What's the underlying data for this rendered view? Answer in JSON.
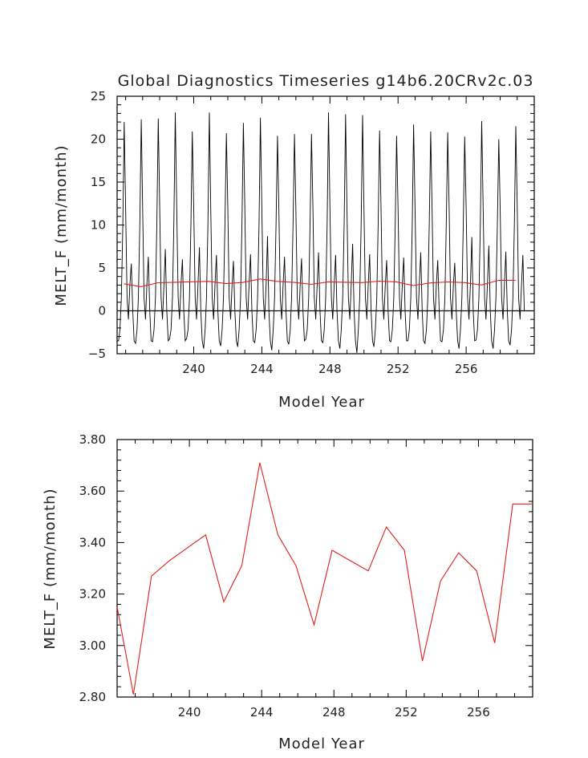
{
  "chart_data": [
    {
      "type": "line",
      "title": "Global Diagnostics Timeseries g14b6.20CRv2c.03",
      "xlabel": "Model Year",
      "ylabel": "MELT_F (mm/month)",
      "xlim": [
        235.5,
        260.0
      ],
      "ylim": [
        -5,
        25
      ],
      "xticks": [
        240,
        244,
        248,
        252,
        256
      ],
      "xtick_labels": [
        "240",
        "244",
        "248",
        "252",
        "256"
      ],
      "yticks": [
        -5,
        0,
        5,
        10,
        15,
        20,
        25
      ],
      "ytick_labels": [
        "−5",
        "0",
        "5",
        "10",
        "15",
        "20",
        "25"
      ],
      "zero_line": true,
      "series": [
        {
          "color": "#000000",
          "start_year": 235.5,
          "step": 0.08333,
          "seasonal_shape": [
            -3.5,
            -3.8,
            -2.2,
            1.5,
            10.0,
            21.5,
            12.0,
            1.5,
            -1.0,
            3.0,
            6.0,
            0.0
          ],
          "annual_peaks": [
            22.0,
            22.3,
            22.4,
            23.1,
            20.9,
            23.1,
            20.7,
            21.9,
            22.5,
            20.4,
            20.6,
            20.6,
            23.1,
            22.9,
            22.8,
            21.0,
            20.4,
            21.7,
            20.9,
            20.8,
            20.3,
            22.1,
            20.0,
            21.5
          ],
          "annual_secondary": [
            5.5,
            6.3,
            7.2,
            6.0,
            7.4,
            6.5,
            5.8,
            6.6,
            8.7,
            6.3,
            6.1,
            6.8,
            6.5,
            7.8,
            6.6,
            5.9,
            6.2,
            6.8,
            5.9,
            5.6,
            8.6,
            7.6,
            6.9,
            6.5
          ],
          "annual_troughs": [
            -3.5,
            -3.8,
            -3.6,
            -3.3,
            -3.2,
            -4.4,
            -4.1,
            -4.2,
            -3.7,
            -4.6,
            -3.9,
            -3.3,
            -3.7,
            -4.4,
            -4.9,
            -4.2,
            -3.6,
            -3.5,
            -3.8,
            -3.6,
            -4.4,
            -3.4,
            -4.4,
            -4.0
          ]
        },
        {
          "color": "#e0201e",
          "x": [
            235.9,
            236.9,
            237.9,
            238.9,
            239.9,
            240.9,
            241.9,
            242.9,
            243.9,
            244.9,
            245.9,
            246.9,
            247.9,
            248.9,
            249.9,
            250.9,
            251.9,
            252.9,
            253.9,
            254.9,
            255.9,
            256.9,
            257.9,
            258.9
          ],
          "y": [
            3.15,
            2.81,
            3.27,
            3.33,
            3.38,
            3.43,
            3.17,
            3.31,
            3.71,
            3.43,
            3.31,
            3.08,
            3.37,
            3.33,
            3.29,
            3.46,
            3.37,
            2.94,
            3.25,
            3.36,
            3.29,
            3.01,
            3.55,
            3.55
          ]
        }
      ]
    },
    {
      "type": "line",
      "title": "",
      "xlabel": "Model Year",
      "ylabel": "MELT_F (mm/month)",
      "xlim": [
        236.0,
        259.0
      ],
      "ylim": [
        2.8,
        3.8
      ],
      "xticks": [
        240,
        244,
        248,
        252,
        256
      ],
      "xtick_labels": [
        "240",
        "244",
        "248",
        "252",
        "256"
      ],
      "yticks": [
        2.8,
        3.0,
        3.2,
        3.4,
        3.6,
        3.8
      ],
      "ytick_labels": [
        "2.80",
        "3.00",
        "3.20",
        "3.40",
        "3.60",
        "3.80"
      ],
      "series": [
        {
          "color": "#e0201e",
          "x": [
            236.0,
            236.9,
            237.9,
            238.9,
            239.9,
            240.9,
            241.9,
            242.9,
            243.9,
            244.9,
            245.9,
            246.9,
            247.9,
            248.9,
            249.9,
            250.9,
            251.9,
            252.9,
            253.9,
            254.9,
            255.9,
            256.9,
            257.9,
            259.0
          ],
          "y": [
            3.15,
            2.81,
            3.27,
            3.33,
            3.38,
            3.43,
            3.17,
            3.31,
            3.71,
            3.43,
            3.31,
            3.08,
            3.37,
            3.33,
            3.29,
            3.46,
            3.37,
            2.94,
            3.25,
            3.36,
            3.29,
            3.01,
            3.55,
            3.55
          ]
        }
      ]
    }
  ]
}
